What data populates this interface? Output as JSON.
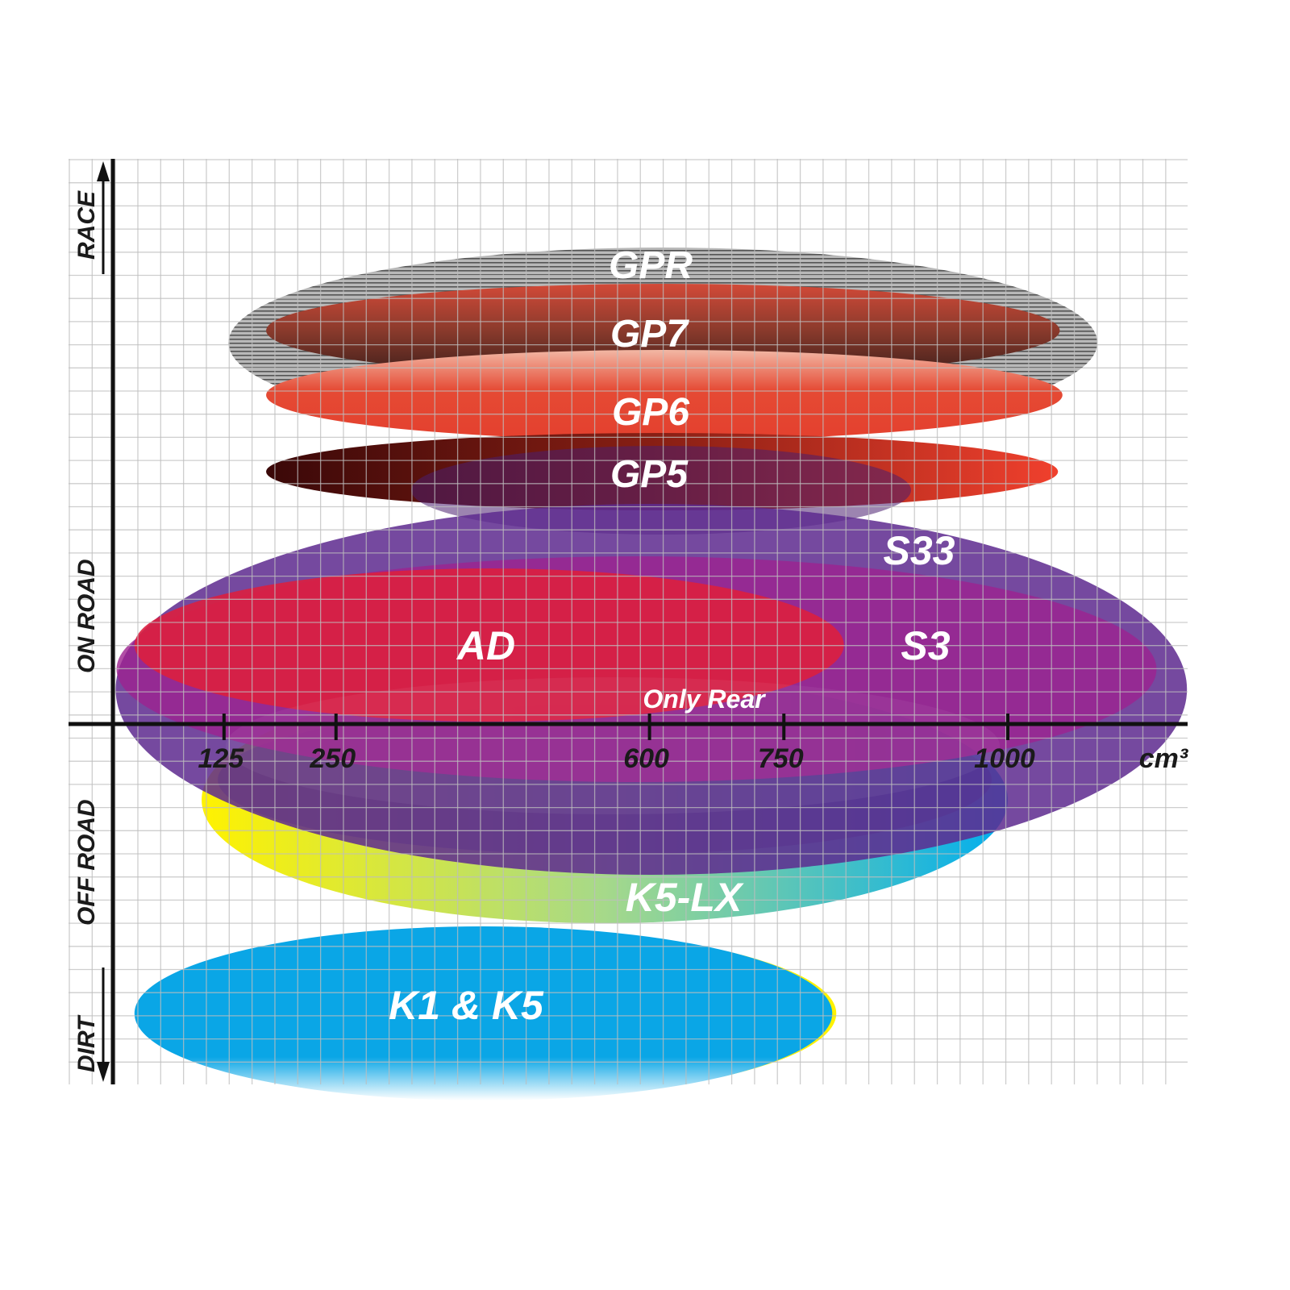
{
  "chart_data": {
    "type": "positioning-map",
    "xlabel": "cm³",
    "x_ticks": [
      125,
      250,
      600,
      750,
      1000
    ],
    "y_axis_labels": [
      "RACE",
      "ON ROAD",
      "OFF ROAD",
      "DIRT"
    ],
    "grid": true,
    "regions": [
      {
        "name": "GPR",
        "label": "GPR",
        "x_range": [
          130,
          1100
        ],
        "color": "#9a9a9a"
      },
      {
        "name": "GP7",
        "label": "GP7",
        "x_range": [
          172,
          1058
        ],
        "color": "#b5402f"
      },
      {
        "name": "GP6",
        "label": "GP6",
        "x_range": [
          172,
          1061
        ],
        "color": "#e5402f"
      },
      {
        "name": "GP5",
        "label": "GP5",
        "x_range": [
          172,
          1056
        ],
        "color": "#e8372a"
      },
      {
        "name": "S33",
        "label": "S33",
        "x_range": [
          4,
          1200
        ],
        "color": "#5e2b8f"
      },
      {
        "name": "S3",
        "label": "S3",
        "x_range": [
          5,
          1166
        ],
        "color": "#9e2390"
      },
      {
        "name": "AD",
        "label": "AD",
        "x_range": [
          25,
          817
        ],
        "color": "#dc1f3f"
      },
      {
        "name": "K5-LX",
        "label": "K5-LX",
        "note": "Only Rear",
        "x_range": [
          100,
          1000
        ],
        "color": "#1fb6e0"
      },
      {
        "name": "K1 & K5",
        "label": "K1 & K5",
        "x_range": [
          25,
          804
        ],
        "color": "#0aa6e6"
      }
    ]
  }
}
